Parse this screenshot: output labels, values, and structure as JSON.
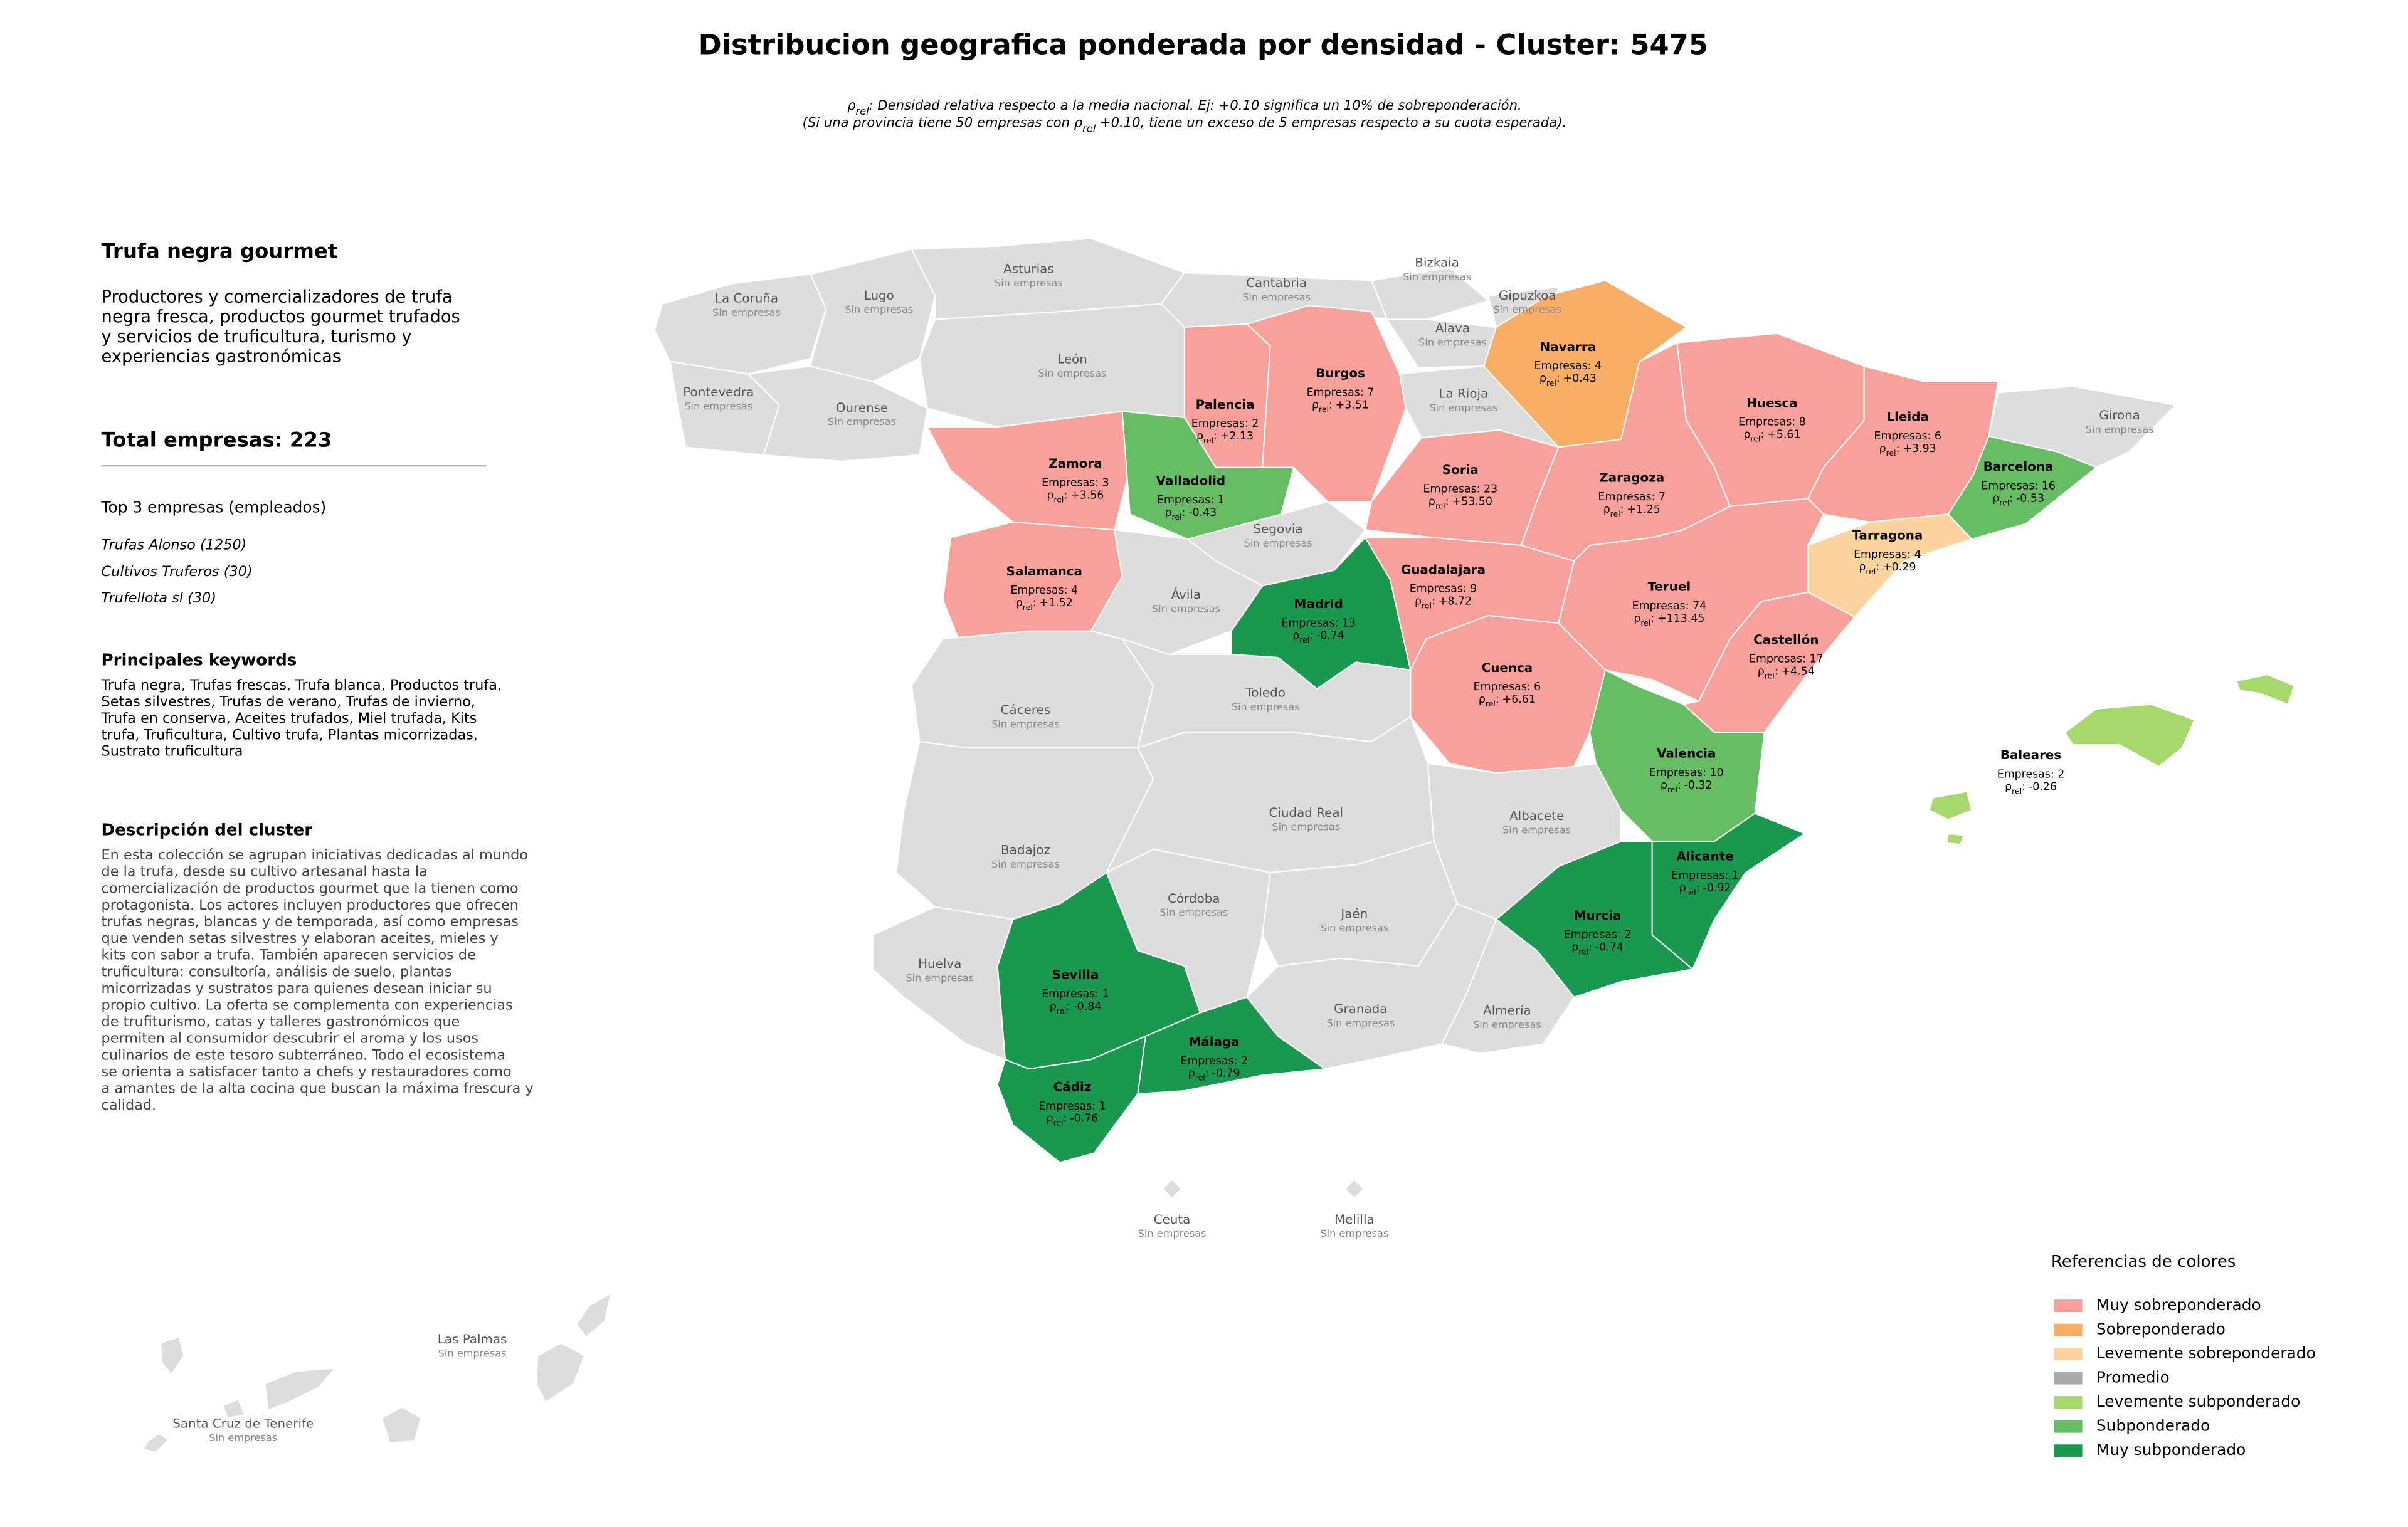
{
  "title": "Distribucion geografica ponderada por densidad - Cluster: 5475",
  "note": {
    "line1": [
      "ρ",
      "rel",
      ": Densidad relativa respecto a la media nacional. Ej: +0.10 significa un 10% de sobreponderación."
    ],
    "line2": [
      "(Si una provincia tiene 50 empresas con ",
      "ρ",
      "rel",
      " +0.10, tiene un exceso de 5 empresas respecto a su cuota esperada)."
    ]
  },
  "panel": {
    "title": "Trufa negra gourmet",
    "summary": [
      "Productores y comercializadores de trufa",
      "negra fresca, productos gourmet trufados",
      "y servicios de truficultura, turismo y",
      "experiencias gastronómicas"
    ],
    "total": "Total empresas: 223",
    "top_title": "Top 3 empresas (empleados)",
    "top": [
      "Trufas Alonso (1250)",
      "Cultivos Truferos (30)",
      "Trufellota sl (30)"
    ],
    "keywords_title": "Principales keywords",
    "keywords": [
      "Trufa negra, Trufas frescas, Trufa blanca, Productos trufa,",
      "Setas silvestres, Trufas de verano, Trufas de invierno,",
      "Trufa en conserva, Aceites trufados, Miel trufada, Kits",
      "trufa, Truficultura, Cultivo trufa, Plantas micorrizadas,",
      "Sustrato truficultura"
    ],
    "description_title": "Descripción del cluster",
    "description": [
      "En esta colección se agrupan iniciativas dedicadas al mundo",
      "de la trufa, desde su cultivo artesanal hasta la",
      "comercialización de productos gourmet que la tienen como",
      "protagonista. Los actores incluyen productores que ofrecen",
      "trufas negras, blancas y de temporada, así como empresas",
      "que venden setas silvestres y elaboran aceites, mieles y",
      "kits con sabor a trufa. También aparecen servicios de",
      "truficultura: consultoría, análisis de suelo, plantas",
      "micorrizadas y sustratos para quienes desean iniciar su",
      "propio cultivo. La oferta se complementa con experiencias",
      "de trufiturismo, catas y talleres gastronómicos que",
      "permiten al consumidor descubrir el aroma y los usos",
      "culinarios de este tesoro subterráneo. Todo el ecosistema",
      "se orienta a satisfacer tanto a chefs y restauradores como",
      "a amantes de la alta cocina que buscan la máxima frescura y",
      "calidad."
    ]
  },
  "map": {
    "default_color": "#dddddd",
    "no_companies_label": "Sin empresas",
    "rho_symbol": "ρ",
    "rho_subscript": "rel",
    "rho_separator": ":"
  },
  "provinces": [
    {
      "name": "La Coruña"
    },
    {
      "name": "Lugo"
    },
    {
      "name": "Pontevedra"
    },
    {
      "name": "Ourense"
    },
    {
      "name": "Asturias"
    },
    {
      "name": "Cantabria"
    },
    {
      "name": "Bizkaia"
    },
    {
      "name": "Gipuzkoa"
    },
    {
      "name": "Alava"
    },
    {
      "name": "Navarra",
      "empresas": "Empresas: 4",
      "rho": "+0.43",
      "color": "#f9ae66"
    },
    {
      "name": "La Rioja"
    },
    {
      "name": "León"
    },
    {
      "name": "Palencia",
      "empresas": "Empresas: 2",
      "rho": "+2.13",
      "color": "#f8a19a"
    },
    {
      "name": "Burgos",
      "empresas": "Empresas: 7",
      "rho": "+3.51",
      "color": "#f8a19a"
    },
    {
      "name": "Zamora",
      "empresas": "Empresas: 3",
      "rho": "+3.56",
      "color": "#f8a19a"
    },
    {
      "name": "Valladolid",
      "empresas": "Empresas: 1",
      "rho": "-0.43",
      "color": "#66bd63"
    },
    {
      "name": "Soria",
      "empresas": "Empresas: 23",
      "rho": "+53.50",
      "color": "#f8a19a"
    },
    {
      "name": "Segovia"
    },
    {
      "name": "Salamanca",
      "empresas": "Empresas: 4",
      "rho": "+1.52",
      "color": "#f8a19a"
    },
    {
      "name": "Ávila"
    },
    {
      "name": "Madrid",
      "empresas": "Empresas: 13",
      "rho": "-0.74",
      "color": "#1a9850"
    },
    {
      "name": "Guadalajara",
      "empresas": "Empresas: 9",
      "rho": "+8.72",
      "color": "#f8a19a"
    },
    {
      "name": "Cuenca",
      "empresas": "Empresas: 6",
      "rho": "+6.61",
      "color": "#f8a19a"
    },
    {
      "name": "Zaragoza",
      "empresas": "Empresas: 7",
      "rho": "+1.25",
      "color": "#f8a19a"
    },
    {
      "name": "Huesca",
      "empresas": "Empresas: 8",
      "rho": "+5.61",
      "color": "#f8a19a"
    },
    {
      "name": "Lleida",
      "empresas": "Empresas: 6",
      "rho": "+3.93",
      "color": "#f8a19a"
    },
    {
      "name": "Girona"
    },
    {
      "name": "Barcelona",
      "empresas": "Empresas: 16",
      "rho": "-0.53",
      "color": "#66bd63"
    },
    {
      "name": "Tarragona",
      "empresas": "Empresas: 4",
      "rho": "+0.29",
      "color": "#fdd49e"
    },
    {
      "name": "Teruel",
      "empresas": "Empresas: 74",
      "rho": "+113.45",
      "color": "#f8a19a"
    },
    {
      "name": "Castellón",
      "empresas": "Empresas: 17",
      "rho": "+4.54",
      "color": "#f8a19a"
    },
    {
      "name": "Valencia",
      "empresas": "Empresas: 10",
      "rho": "-0.32",
      "color": "#66bd63"
    },
    {
      "name": "Alicante",
      "empresas": "Empresas: 1",
      "rho": "-0.92",
      "color": "#1a9850"
    },
    {
      "name": "Murcia",
      "empresas": "Empresas: 2",
      "rho": "-0.74",
      "color": "#1a9850"
    },
    {
      "name": "Albacete"
    },
    {
      "name": "Cáceres"
    },
    {
      "name": "Toledo"
    },
    {
      "name": "Badajoz"
    },
    {
      "name": "Ciudad Real"
    },
    {
      "name": "Huelva"
    },
    {
      "name": "Sevilla",
      "empresas": "Empresas: 1",
      "rho": "-0.84",
      "color": "#1a9850"
    },
    {
      "name": "Córdoba"
    },
    {
      "name": "Jaén"
    },
    {
      "name": "Granada"
    },
    {
      "name": "Almería"
    },
    {
      "name": "Málaga",
      "empresas": "Empresas: 2",
      "rho": "-0.79",
      "color": "#1a9850"
    },
    {
      "name": "Cádiz",
      "empresas": "Empresas: 1",
      "rho": "-0.76",
      "color": "#1a9850"
    },
    {
      "name": "Baleares",
      "empresas": "Empresas: 2",
      "rho": "-0.26",
      "color": "#a6d96a"
    },
    {
      "name": "Ceuta"
    },
    {
      "name": "Melilla"
    },
    {
      "name": "Las Palmas"
    },
    {
      "name": "Santa Cruz de Tenerife"
    }
  ],
  "legend": {
    "title": "Referencias de colores",
    "items": [
      {
        "name": "Muy sobreponderado",
        "color": "#f8a19a"
      },
      {
        "name": "Sobreponderado",
        "color": "#f9ae66"
      },
      {
        "name": "Levemente sobreponderado",
        "color": "#fdd49e"
      },
      {
        "name": "Promedio",
        "color": "#aaaaaa"
      },
      {
        "name": "Levemente subponderado",
        "color": "#a6d96a"
      },
      {
        "name": "Subponderado",
        "color": "#66bd63"
      },
      {
        "name": "Muy subponderado",
        "color": "#1a9850"
      }
    ]
  }
}
